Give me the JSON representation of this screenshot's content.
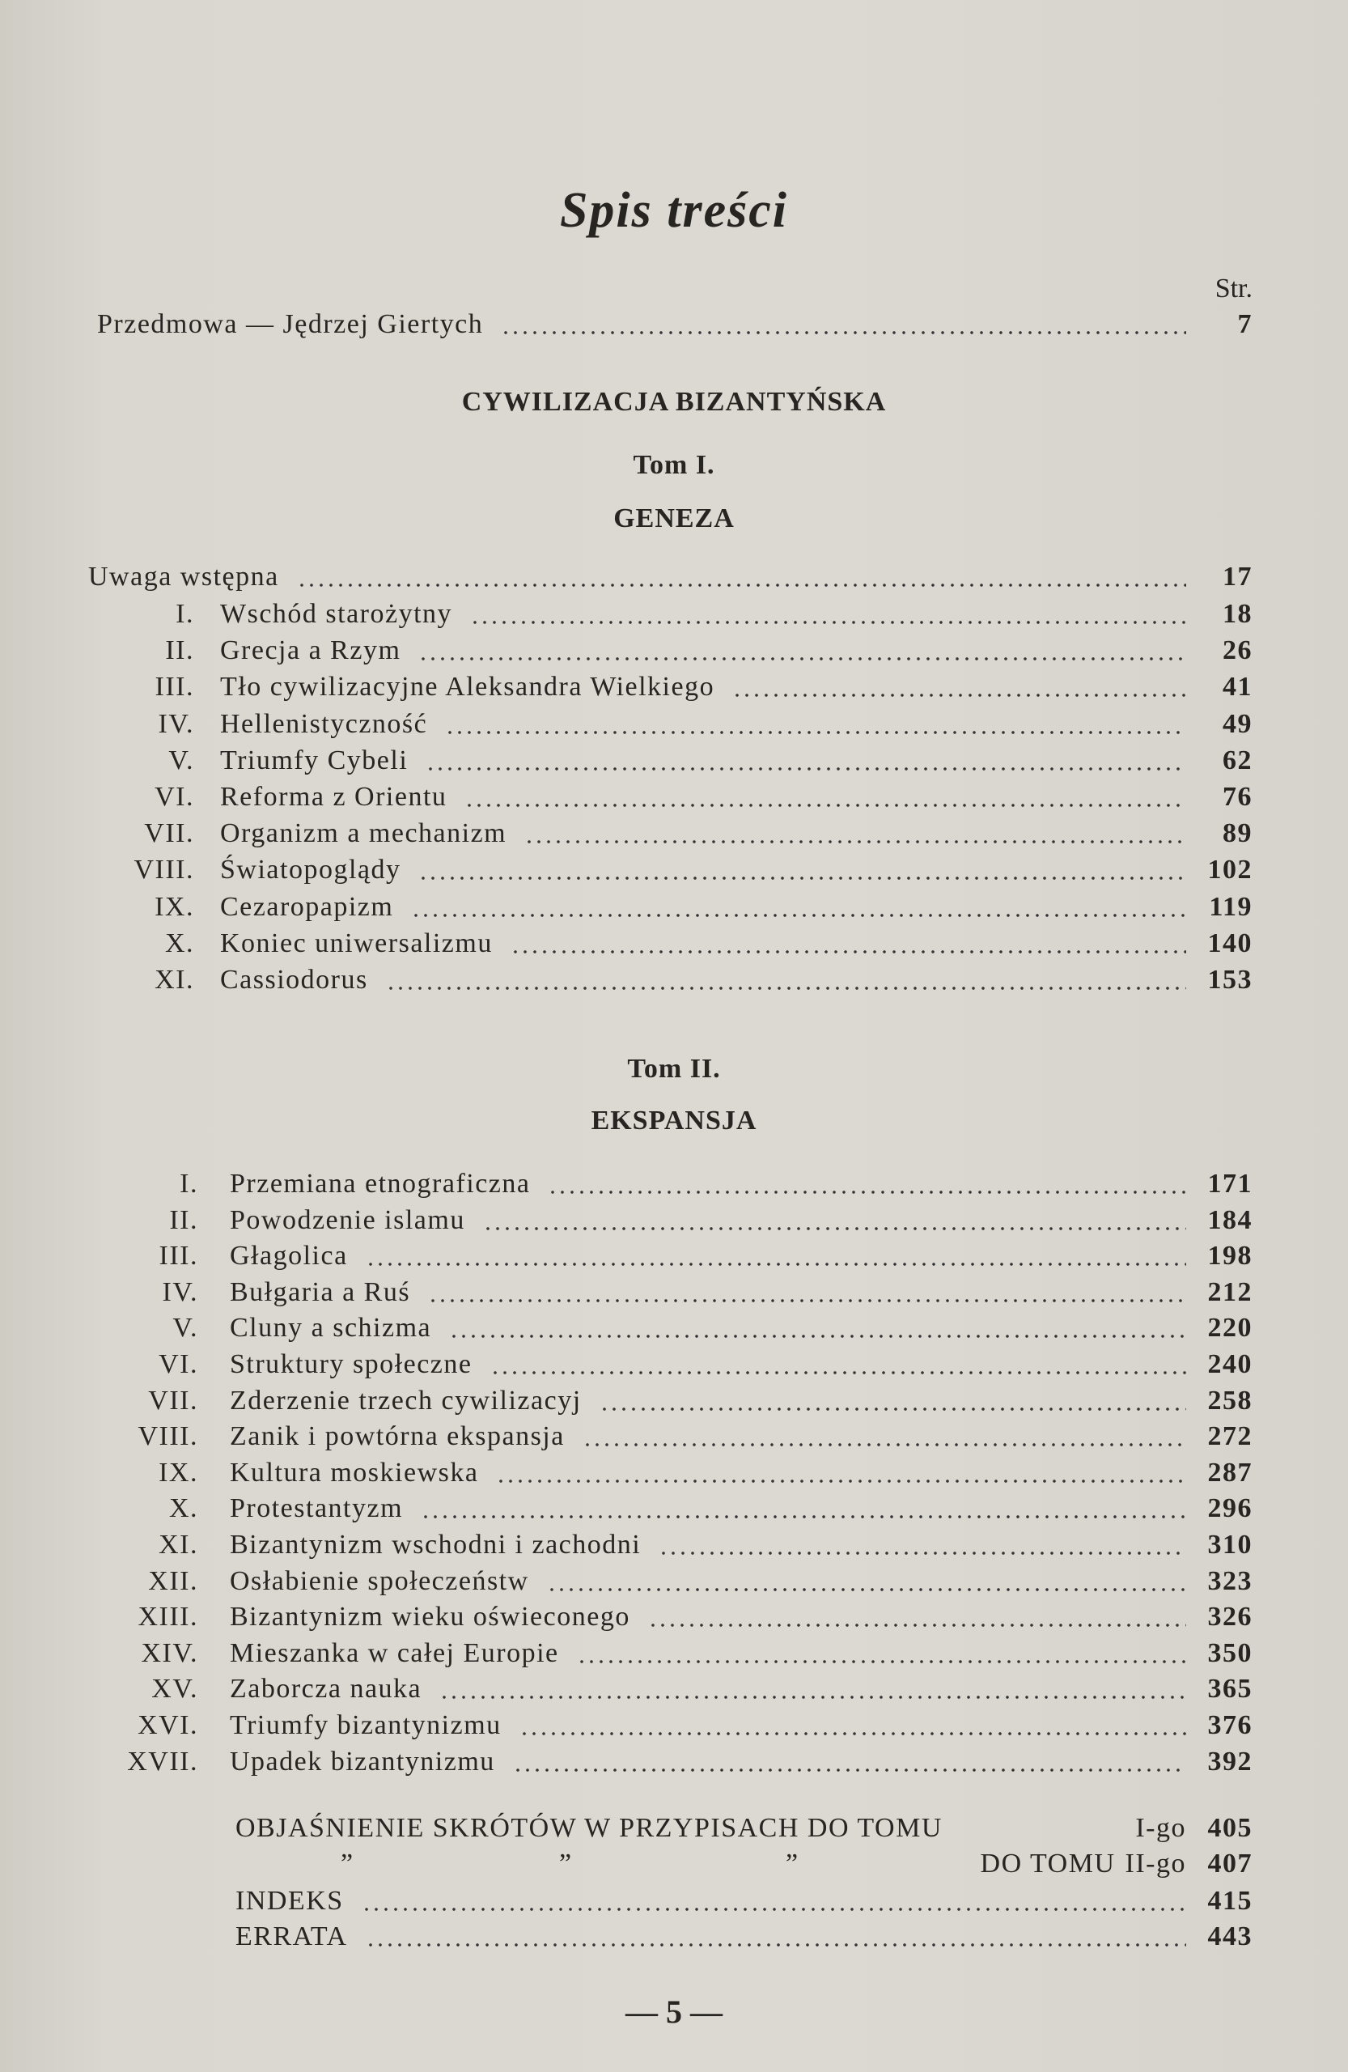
{
  "title": "Spis treści",
  "page_column_label": "Str.",
  "preface": {
    "text": "Przedmowa — Jędrzej Giertych",
    "page": "7"
  },
  "main_heading": "CYWILIZACJA BIZANTYŃSKA",
  "volume1": {
    "label": "Tom I.",
    "subtitle": "GENEZA",
    "intro": {
      "text": "Uwaga wstępna",
      "page": "17"
    },
    "chapters": [
      {
        "num": "I.",
        "text": "Wschód starożytny",
        "page": "18"
      },
      {
        "num": "II.",
        "text": "Grecja a Rzym",
        "page": "26"
      },
      {
        "num": "III.",
        "text": "Tło cywilizacyjne Aleksandra Wielkiego",
        "page": "41"
      },
      {
        "num": "IV.",
        "text": "Hellenistyczność",
        "page": "49"
      },
      {
        "num": "V.",
        "text": "Triumfy Cybeli",
        "page": "62"
      },
      {
        "num": "VI.",
        "text": "Reforma z Orientu",
        "page": "76"
      },
      {
        "num": "VII.",
        "text": "Organizm a mechanizm",
        "page": "89"
      },
      {
        "num": "VIII.",
        "text": "Światopoglądy",
        "page": "102"
      },
      {
        "num": "IX.",
        "text": "Cezaropapizm",
        "page": "119"
      },
      {
        "num": "X.",
        "text": "Koniec uniwersalizmu",
        "page": "140"
      },
      {
        "num": "XI.",
        "text": "Cassiodorus",
        "page": "153"
      }
    ]
  },
  "volume2": {
    "label": "Tom II.",
    "subtitle": "EKSPANSJA",
    "chapters": [
      {
        "num": "I.",
        "text": "Przemiana etnograficzna",
        "page": "171"
      },
      {
        "num": "II.",
        "text": "Powodzenie islamu",
        "page": "184"
      },
      {
        "num": "III.",
        "text": "Głagolica",
        "page": "198"
      },
      {
        "num": "IV.",
        "text": "Bułgaria a Ruś",
        "page": "212"
      },
      {
        "num": "V.",
        "text": "Cluny a schizma",
        "page": "220"
      },
      {
        "num": "VI.",
        "text": "Struktury społeczne",
        "page": "240"
      },
      {
        "num": "VII.",
        "text": "Zderzenie trzech cywilizacyj",
        "page": "258"
      },
      {
        "num": "VIII.",
        "text": "Zanik i powtórna ekspansja",
        "page": "272"
      },
      {
        "num": "IX.",
        "text": "Kultura moskiewska",
        "page": "287"
      },
      {
        "num": "X.",
        "text": "Protestantyzm",
        "page": "296"
      },
      {
        "num": "XI.",
        "text": "Bizantynizm wschodni i zachodni",
        "page": "310"
      },
      {
        "num": "XII.",
        "text": "Osłabienie społeczeństw",
        "page": "323"
      },
      {
        "num": "XIII.",
        "text": "Bizantynizm wieku oświeconego",
        "page": "326"
      },
      {
        "num": "XIV.",
        "text": "Mieszanka w całej Europie",
        "page": "350"
      },
      {
        "num": "XV.",
        "text": "Zaborcza nauka",
        "page": "365"
      },
      {
        "num": "XVI.",
        "text": "Triumfy bizantynizmu",
        "page": "376"
      },
      {
        "num": "XVII.",
        "text": "Upadek bizantynizmu",
        "page": "392"
      }
    ]
  },
  "appendix": {
    "abbrev1": {
      "text": "OBJAŚNIENIE SKRÓTÓW W PRZYPISACH DO TOMU",
      "suffix": "I-go",
      "page": "405"
    },
    "abbrev2": {
      "ditto": "”",
      "text": "DO TOMU",
      "suffix": "II-go",
      "page": "407"
    },
    "index": {
      "text": "INDEKS",
      "page": "415"
    },
    "errata": {
      "text": "ERRATA",
      "page": "443"
    }
  },
  "page_number": "— 5 —"
}
